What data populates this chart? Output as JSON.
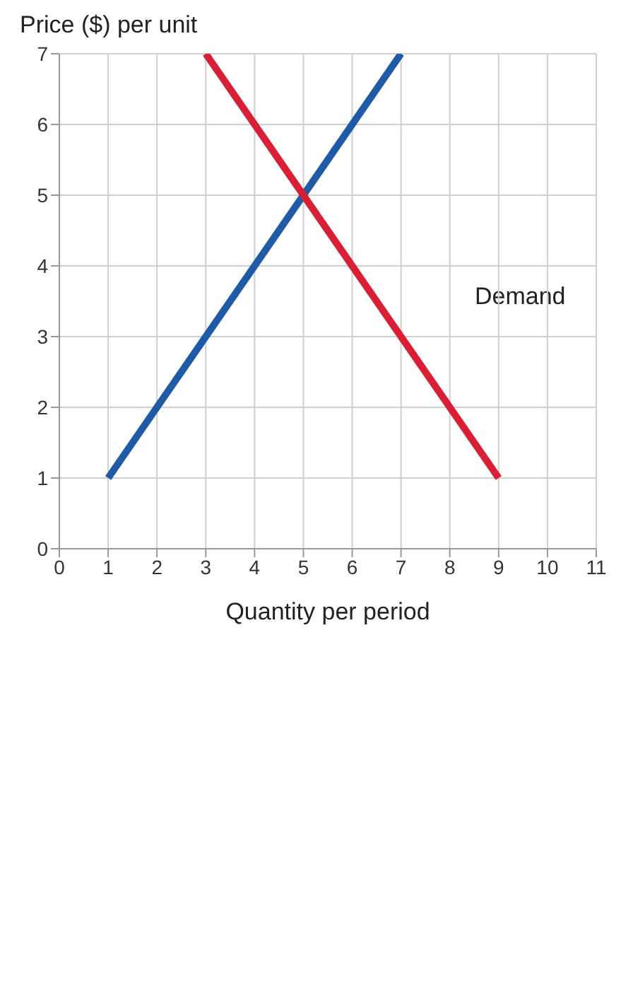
{
  "chart_data": {
    "type": "line",
    "xlabel": "Quantity per period",
    "ylabel": "Price ($) per unit",
    "xlim": [
      0,
      11
    ],
    "xticks": [
      0,
      1,
      2,
      3,
      4,
      5,
      6,
      7,
      8,
      9,
      10,
      11
    ],
    "ylim": [
      0,
      7
    ],
    "yticks": [
      0,
      1,
      2,
      3,
      4,
      5,
      6,
      7
    ],
    "series": [
      {
        "color": "#1f5aa6",
        "x": [
          1,
          7
        ],
        "values": [
          1,
          7
        ]
      },
      {
        "color": "#d81f35",
        "x": [
          3,
          9
        ],
        "values": [
          7,
          1
        ]
      }
    ],
    "annotations": [
      "Demand"
    ],
    "grid": true,
    "marker": "none",
    "line_style": "solid"
  }
}
